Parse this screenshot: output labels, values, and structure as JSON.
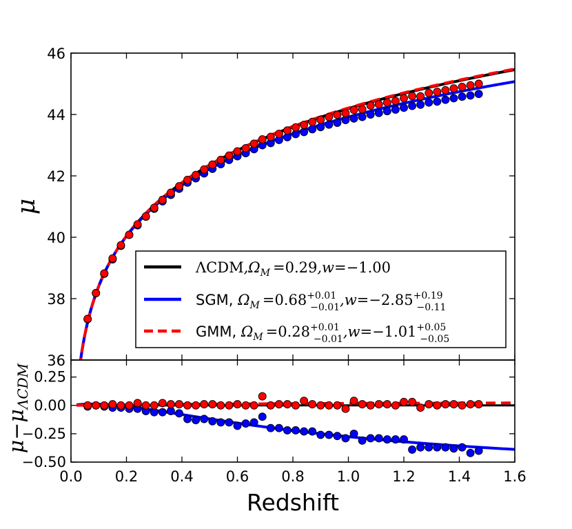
{
  "chart_data": [
    {
      "type": "scatter",
      "panel": "top",
      "xlabel": "",
      "ylabel": "μ",
      "xlim": [
        0.0,
        1.6
      ],
      "ylim": [
        36,
        46
      ],
      "yticks": [
        "36",
        "38",
        "40",
        "42",
        "44",
        "46"
      ],
      "legend": {
        "placement": "lower-right",
        "entries": [
          {
            "key": "lcdm",
            "prefix": "",
            "model": "ΛCDM",
            "om_label": ",Ω",
            "om_sub": "M",
            "om_value": "=0.29",
            "om_err_up": "",
            "om_err_down": "",
            "w_label": ",w",
            "w_value": "=−1.00",
            "w_err_up": "",
            "w_err_down": ""
          },
          {
            "key": "sgm",
            "prefix": "SGM, ",
            "model": "",
            "om_label": "Ω",
            "om_sub": "M",
            "om_value": "=0.68",
            "om_err_up": "+0.01",
            "om_err_down": "−0.01",
            "w_label": ",w",
            "w_value": "=−2.85",
            "w_err_up": "+0.19",
            "w_err_down": "−0.11"
          },
          {
            "key": "gmm",
            "prefix": "GMM, ",
            "model": "",
            "om_label": "Ω",
            "om_sub": "M",
            "om_value": "=0.28",
            "om_err_up": "+0.01",
            "om_err_down": "−0.01",
            "w_label": ",w",
            "w_value": "=−1.01",
            "w_err_up": "+0.05",
            "w_err_down": "−0.05"
          }
        ]
      },
      "series": [
        {
          "key": "lcdm",
          "kind": "line",
          "color": "#000000",
          "style": "solid",
          "omega_m": 0.29,
          "w": -1.0
        },
        {
          "key": "sgm",
          "kind": "line",
          "color": "#0000ff",
          "style": "solid",
          "omega_m": 0.68,
          "w": -2.85
        },
        {
          "key": "gmm",
          "kind": "line",
          "color": "#ff0000",
          "style": "dashed",
          "omega_m": 0.28,
          "w": -1.01
        },
        {
          "key": "sgm-points",
          "kind": "points",
          "color": "#0000ff",
          "x": [
            0.06,
            0.09,
            0.12,
            0.15,
            0.18,
            0.21,
            0.24,
            0.27,
            0.3,
            0.33,
            0.36,
            0.39,
            0.42,
            0.45,
            0.48,
            0.51,
            0.54,
            0.57,
            0.6,
            0.63,
            0.66,
            0.69,
            0.72,
            0.75,
            0.78,
            0.81,
            0.84,
            0.87,
            0.9,
            0.93,
            0.96,
            0.99,
            1.02,
            1.05,
            1.08,
            1.11,
            1.14,
            1.17,
            1.2,
            1.23,
            1.26,
            1.29,
            1.32,
            1.35,
            1.38,
            1.41,
            1.44,
            1.47
          ],
          "y": [
            37.33,
            38.18,
            38.81,
            39.28,
            39.72,
            40.08,
            40.39,
            40.67,
            40.93,
            41.17,
            41.38,
            41.58,
            41.78,
            41.92,
            42.08,
            42.23,
            42.38,
            42.52,
            42.64,
            42.74,
            42.87,
            43.0,
            43.07,
            43.17,
            43.26,
            43.36,
            43.43,
            43.52,
            43.59,
            43.67,
            43.73,
            43.82,
            43.87,
            43.92,
            44.0,
            44.05,
            44.11,
            44.16,
            44.22,
            44.28,
            44.32,
            44.39,
            44.42,
            44.48,
            44.53,
            44.58,
            44.62,
            44.67
          ]
        },
        {
          "key": "gmm-points",
          "kind": "points",
          "color": "#ff0000",
          "x": [
            0.06,
            0.09,
            0.12,
            0.15,
            0.18,
            0.21,
            0.24,
            0.27,
            0.3,
            0.33,
            0.36,
            0.39,
            0.42,
            0.45,
            0.48,
            0.51,
            0.54,
            0.57,
            0.6,
            0.63,
            0.66,
            0.69,
            0.72,
            0.75,
            0.78,
            0.81,
            0.84,
            0.87,
            0.9,
            0.93,
            0.96,
            0.99,
            1.02,
            1.05,
            1.08,
            1.11,
            1.14,
            1.17,
            1.2,
            1.23,
            1.26,
            1.29,
            1.32,
            1.35,
            1.38,
            1.41,
            1.44,
            1.47
          ],
          "y": [
            37.34,
            38.18,
            38.82,
            39.31,
            39.74,
            40.08,
            40.42,
            40.68,
            40.96,
            41.22,
            41.45,
            41.66,
            41.87,
            42.03,
            42.21,
            42.37,
            42.52,
            42.66,
            42.8,
            42.9,
            43.05,
            43.19,
            43.27,
            43.37,
            43.48,
            43.58,
            43.66,
            43.76,
            43.83,
            43.92,
            43.99,
            44.04,
            44.15,
            44.17,
            44.29,
            44.33,
            44.39,
            44.44,
            44.53,
            44.6,
            44.59,
            44.7,
            44.74,
            44.79,
            44.85,
            44.9,
            44.95,
            45.0
          ]
        }
      ]
    },
    {
      "type": "scatter",
      "panel": "bottom",
      "xlabel": "Redshift",
      "ylabel": "μ−μΛCDM",
      "ylabel_main": "μ−μ",
      "ylabel_sub": "ΛCDM",
      "xlim": [
        0.0,
        1.6
      ],
      "ylim": [
        -0.5,
        0.4
      ],
      "xticks": [
        "0.0",
        "0.2",
        "0.4",
        "0.6",
        "0.8",
        "1.0",
        "1.2",
        "1.4",
        "1.6"
      ],
      "yticks": [
        "−0.50",
        "−0.25",
        "0.00",
        "0.25"
      ],
      "series": [
        {
          "key": "sgm-residual-line",
          "kind": "line",
          "color": "#0000ff",
          "style": "solid"
        },
        {
          "key": "gmm-residual-line",
          "kind": "line",
          "color": "#ff0000",
          "style": "dashed"
        },
        {
          "key": "lcdm-residual-line",
          "kind": "line",
          "color": "#000000",
          "style": "solid"
        },
        {
          "key": "sgm-residual-points",
          "kind": "points",
          "color": "#0000ff",
          "x": [
            0.06,
            0.09,
            0.12,
            0.15,
            0.18,
            0.21,
            0.24,
            0.27,
            0.3,
            0.33,
            0.36,
            0.39,
            0.42,
            0.45,
            0.48,
            0.51,
            0.54,
            0.57,
            0.6,
            0.63,
            0.66,
            0.69,
            0.72,
            0.75,
            0.78,
            0.81,
            0.84,
            0.87,
            0.9,
            0.93,
            0.96,
            0.99,
            1.02,
            1.05,
            1.08,
            1.11,
            1.14,
            1.17,
            1.2,
            1.23,
            1.26,
            1.29,
            1.32,
            1.35,
            1.38,
            1.41,
            1.44,
            1.47
          ],
          "y": [
            -0.01,
            0.0,
            -0.01,
            -0.02,
            -0.02,
            -0.03,
            -0.03,
            -0.05,
            -0.06,
            -0.06,
            -0.05,
            -0.07,
            -0.12,
            -0.13,
            -0.12,
            -0.14,
            -0.15,
            -0.15,
            -0.18,
            -0.16,
            -0.15,
            -0.1,
            -0.2,
            -0.2,
            -0.22,
            -0.22,
            -0.23,
            -0.23,
            -0.26,
            -0.26,
            -0.27,
            -0.29,
            -0.25,
            -0.31,
            -0.29,
            -0.29,
            -0.3,
            -0.3,
            -0.3,
            -0.39,
            -0.37,
            -0.37,
            -0.37,
            -0.37,
            -0.38,
            -0.37,
            -0.42,
            -0.4
          ]
        },
        {
          "key": "gmm-residual-points",
          "kind": "points",
          "color": "#ff0000",
          "x": [
            0.06,
            0.09,
            0.12,
            0.15,
            0.18,
            0.21,
            0.24,
            0.27,
            0.3,
            0.33,
            0.36,
            0.39,
            0.42,
            0.45,
            0.48,
            0.51,
            0.54,
            0.57,
            0.6,
            0.63,
            0.66,
            0.69,
            0.72,
            0.75,
            0.78,
            0.81,
            0.84,
            0.87,
            0.9,
            0.93,
            0.96,
            0.99,
            1.02,
            1.05,
            1.08,
            1.11,
            1.14,
            1.17,
            1.2,
            1.23,
            1.26,
            1.29,
            1.32,
            1.35,
            1.38,
            1.41,
            1.44,
            1.47
          ],
          "y": [
            0.0,
            0.0,
            0.0,
            0.01,
            0.0,
            0.0,
            0.02,
            0.0,
            0.0,
            0.02,
            0.01,
            0.01,
            0.0,
            0.0,
            0.01,
            0.01,
            0.0,
            0.0,
            0.01,
            0.0,
            0.0,
            0.08,
            0.0,
            0.01,
            0.01,
            0.0,
            0.04,
            0.01,
            0.0,
            0.0,
            0.0,
            -0.03,
            0.04,
            0.01,
            0.0,
            0.01,
            0.01,
            0.0,
            0.03,
            0.03,
            -0.02,
            0.01,
            0.0,
            0.01,
            0.01,
            0.0,
            0.01,
            0.01
          ]
        }
      ]
    }
  ]
}
